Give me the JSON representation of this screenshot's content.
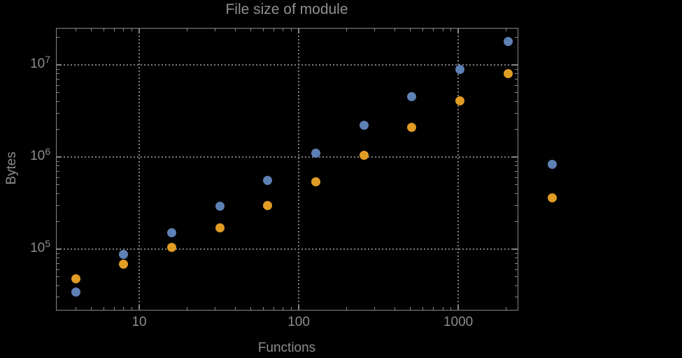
{
  "title": "File size of module",
  "x_axis": {
    "label": "Functions",
    "tick_labels": [
      "10",
      "100",
      "1000"
    ]
  },
  "y_axis": {
    "label": "Bytes",
    "tick_labels": [
      {
        "base": "10",
        "exp": "5"
      },
      {
        "base": "10",
        "exp": "6"
      },
      {
        "base": "10",
        "exp": "7"
      }
    ]
  },
  "colors": {
    "background": "#000000",
    "frame": "#858585",
    "grid": "#7d7d7d",
    "text": "#8c8c8c",
    "series1": "#5E81B5",
    "series2": "#E19C24"
  },
  "legend": {
    "position": "right-outside",
    "visible_labels": "",
    "markers": [
      {
        "name": "series-1",
        "color": "#5E81B5"
      },
      {
        "name": "series-2",
        "color": "#E19C24"
      }
    ]
  },
  "chart_data": {
    "type": "scatter",
    "title": "File size of module",
    "xlabel": "Functions",
    "ylabel": "Bytes",
    "x_scale": "log",
    "y_scale": "log",
    "xlim": [
      3.02,
      2345
    ],
    "ylim": [
      22100,
      25000000
    ],
    "grid": "dotted-lines-at-major-decade-ticks",
    "x": [
      4,
      8,
      16,
      32,
      64,
      128,
      256,
      512,
      1024,
      2048
    ],
    "series": [
      {
        "name": "series-1-blue",
        "color": "#5E81B5",
        "values": [
          34000,
          88000,
          150000,
          290000,
          560000,
          1100000,
          2200000,
          4500000,
          8900000,
          17800000
        ]
      },
      {
        "name": "series-2-orange",
        "color": "#E19C24",
        "values": [
          48000,
          69000,
          105000,
          170000,
          300000,
          540000,
          1050000,
          2100000,
          4100000,
          8100000
        ]
      }
    ],
    "x_major_ticks": [
      10,
      100,
      1000
    ],
    "y_major_ticks": [
      100000,
      1000000,
      10000000
    ]
  }
}
